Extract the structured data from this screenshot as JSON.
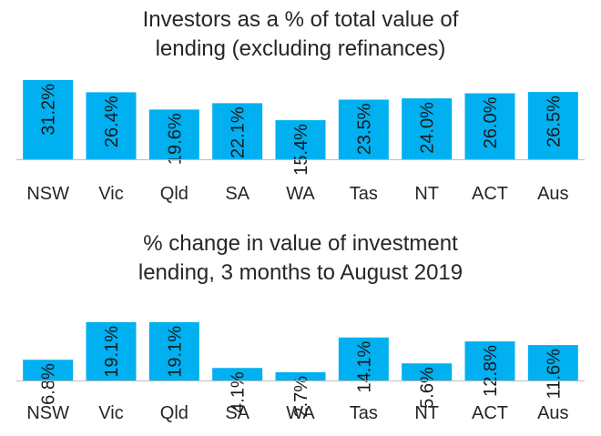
{
  "colors": {
    "bar": "#00B0F0",
    "axis": "#BFBFBF",
    "text": "#262626"
  },
  "chart_data": [
    {
      "type": "bar",
      "title": [
        "Investors as a % of total value of",
        "lending (excluding refinances)"
      ],
      "categories": [
        "NSW",
        "Vic",
        "Qld",
        "SA",
        "WA",
        "Tas",
        "NT",
        "ACT",
        "Aus"
      ],
      "values": [
        31.2,
        26.4,
        19.6,
        22.1,
        15.4,
        23.5,
        24.0,
        26.0,
        26.5
      ],
      "data_labels": [
        "31.2%",
        "26.4%",
        "19.6%",
        "22.1%",
        "15.4%",
        "23.5%",
        "24.0%",
        "26.0%",
        "26.5%"
      ],
      "ylim": [
        0,
        31.2
      ],
      "grid": false,
      "legend": "none"
    },
    {
      "type": "bar",
      "title": [
        "% change in value of investment",
        "lending, 3 months to August 2019"
      ],
      "categories": [
        "NSW",
        "Vic",
        "Qld",
        "SA",
        "WA",
        "Tas",
        "NT",
        "ACT",
        "Aus"
      ],
      "values": [
        6.8,
        19.1,
        19.1,
        4.1,
        2.7,
        14.1,
        5.6,
        12.8,
        11.6
      ],
      "data_labels": [
        "6.8%",
        "19.1%",
        "19.1%",
        "4.1%",
        "2.7%",
        "14.1%",
        "5.6%",
        "12.8%",
        "11.6%"
      ],
      "ylim": [
        0,
        19.1
      ],
      "grid": false,
      "legend": "none"
    }
  ]
}
